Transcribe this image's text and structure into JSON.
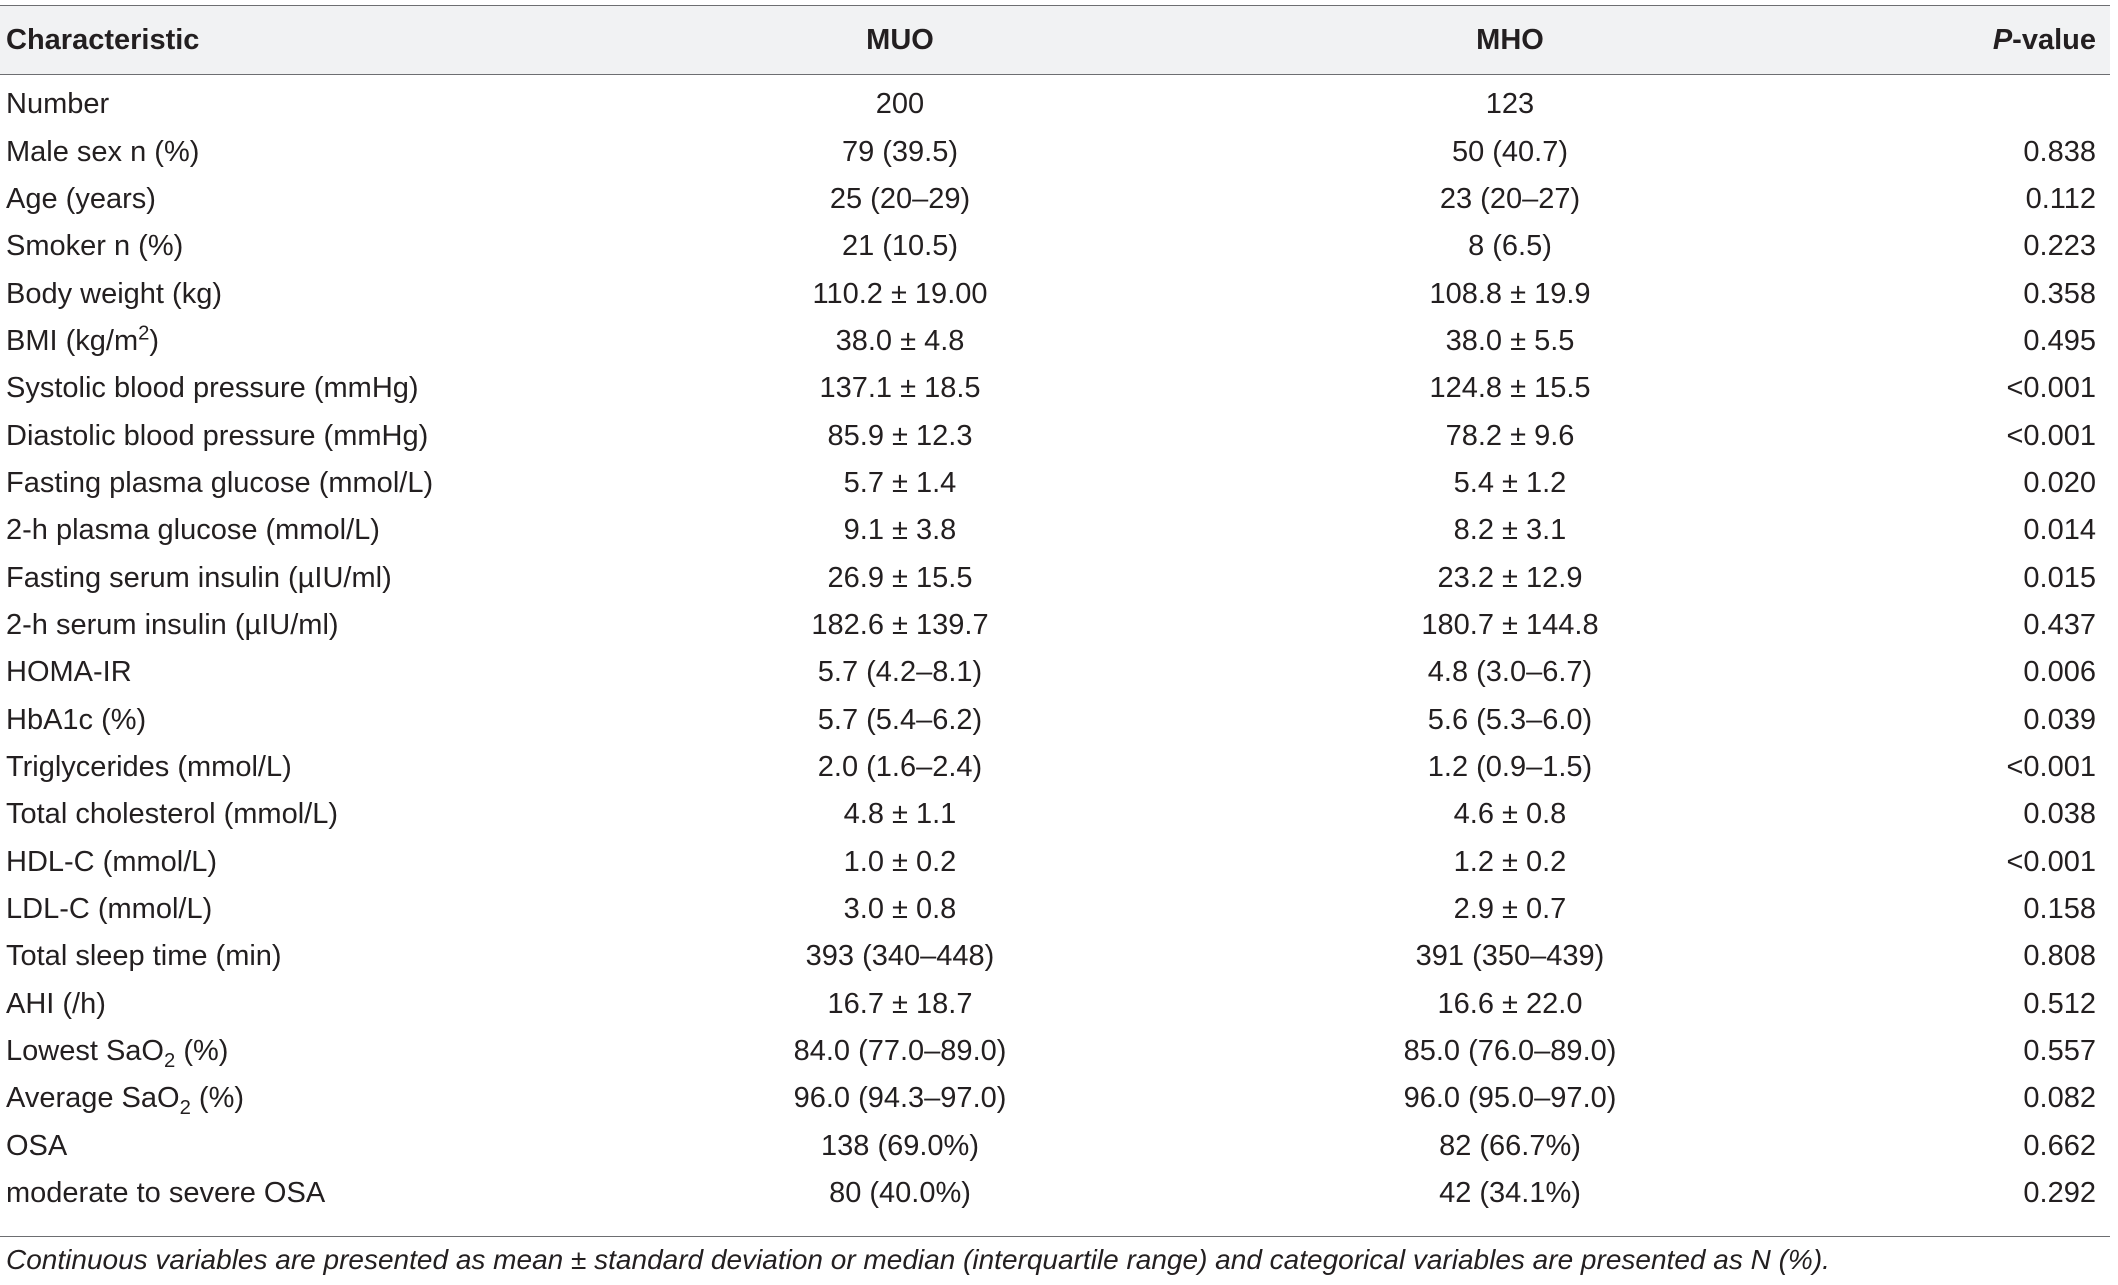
{
  "table": {
    "headers": {
      "characteristic": "Characteristic",
      "muo": "MUO",
      "mho": "MHO",
      "p_italic": "P",
      "p_rest": "-value"
    },
    "rows": [
      {
        "label": "Number",
        "muo": "200",
        "mho": "123",
        "p": ""
      },
      {
        "label": "Male sex n (%)",
        "muo": "79 (39.5)",
        "mho": "50 (40.7)",
        "p": "0.838"
      },
      {
        "label": "Age (years)",
        "muo": "25 (20–29)",
        "mho": "23 (20–27)",
        "p": "0.112"
      },
      {
        "label": "Smoker n (%)",
        "muo": "21 (10.5)",
        "mho": "8 (6.5)",
        "p": "0.223"
      },
      {
        "label": "Body weight (kg)",
        "muo": "110.2 ± 19.00",
        "mho": "108.8 ± 19.9",
        "p": "0.358"
      },
      {
        "label": "BMI (kg/m",
        "label_sup": "2",
        "label_after": ")",
        "muo": "38.0 ± 4.8",
        "mho": "38.0 ± 5.5",
        "p": "0.495"
      },
      {
        "label": "Systolic blood pressure (mmHg)",
        "muo": "137.1 ± 18.5",
        "mho": "124.8 ± 15.5",
        "p": "<0.001"
      },
      {
        "label": "Diastolic blood pressure (mmHg)",
        "muo": "85.9 ± 12.3",
        "mho": "78.2 ± 9.6",
        "p": "<0.001"
      },
      {
        "label": "Fasting plasma glucose (mmol/L)",
        "muo": "5.7 ± 1.4",
        "mho": "5.4 ± 1.2",
        "p": "0.020"
      },
      {
        "label": "2-h plasma glucose (mmol/L)",
        "muo": "9.1 ± 3.8",
        "mho": "8.2 ± 3.1",
        "p": "0.014"
      },
      {
        "label": "Fasting serum insulin (µIU/ml)",
        "muo": "26.9 ± 15.5",
        "mho": "23.2 ± 12.9",
        "p": "0.015"
      },
      {
        "label": "2-h serum insulin (µIU/ml)",
        "muo": "182.6 ± 139.7",
        "mho": "180.7 ± 144.8",
        "p": "0.437"
      },
      {
        "label": "HOMA-IR",
        "muo": "5.7 (4.2–8.1)",
        "mho": "4.8 (3.0–6.7)",
        "p": "0.006"
      },
      {
        "label": "HbA1c (%)",
        "muo": "5.7 (5.4–6.2)",
        "mho": "5.6 (5.3–6.0)",
        "p": "0.039"
      },
      {
        "label": "Triglycerides (mmol/L)",
        "muo": "2.0 (1.6–2.4)",
        "mho": "1.2 (0.9–1.5)",
        "p": "<0.001"
      },
      {
        "label": "Total cholesterol (mmol/L)",
        "muo": "4.8 ± 1.1",
        "mho": "4.6 ± 0.8",
        "p": "0.038"
      },
      {
        "label": "HDL-C (mmol/L)",
        "muo": "1.0 ± 0.2",
        "mho": "1.2 ± 0.2",
        "p": "<0.001"
      },
      {
        "label": "LDL-C (mmol/L)",
        "muo": "3.0 ± 0.8",
        "mho": "2.9 ± 0.7",
        "p": "0.158"
      },
      {
        "label": "Total sleep time (min)",
        "muo": "393 (340–448)",
        "mho": "391 (350–439)",
        "p": "0.808"
      },
      {
        "label": "AHI (/h)",
        "muo": "16.7 ± 18.7",
        "mho": "16.6 ± 22.0",
        "p": "0.512"
      },
      {
        "label": "Lowest SaO",
        "label_sub": "2",
        "label_after": " (%)",
        "muo": "84.0 (77.0–89.0)",
        "mho": "85.0 (76.0–89.0)",
        "p": "0.557"
      },
      {
        "label": "Average SaO",
        "label_sub": "2",
        "label_after": " (%)",
        "muo": "96.0 (94.3–97.0)",
        "mho": "96.0 (95.0–97.0)",
        "p": "0.082"
      },
      {
        "label": "OSA",
        "muo": "138 (69.0%)",
        "mho": "82 (66.7%)",
        "p": "0.662"
      },
      {
        "label": "moderate to severe OSA",
        "muo": "80 (40.0%)",
        "mho": "42 (34.1%)",
        "p": "0.292"
      }
    ]
  },
  "footnote": "Continuous variables are presented as mean ± standard deviation or median (interquartile range) and categorical variables are presented as N (%)."
}
